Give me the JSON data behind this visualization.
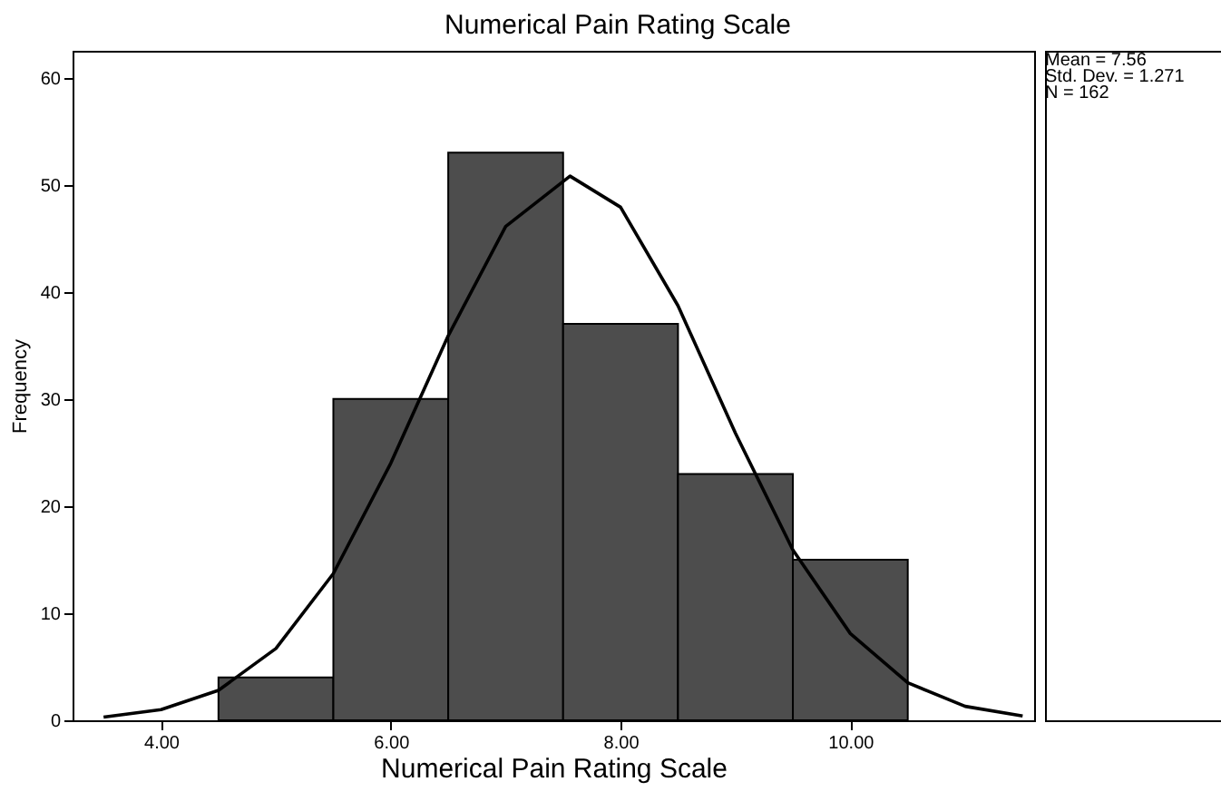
{
  "chart_data": {
    "type": "histogram",
    "title": "Numerical Pain Rating Scale",
    "xlabel": "Numerical Pain Rating Scale",
    "ylabel": "Frequency",
    "bins": [
      4.5,
      5.5,
      6.5,
      7.5,
      8.5,
      9.5,
      10.5
    ],
    "values": [
      4,
      30,
      53,
      37,
      23,
      15
    ],
    "color": "#4d4d4d",
    "series": [
      {
        "type": "line",
        "color": "#000000",
        "x": [
          3.5,
          4,
          4.5,
          5,
          5.5,
          6,
          6.5,
          7,
          7.56,
          8,
          8.5,
          9,
          9.5,
          10,
          10.5,
          11,
          11.5
        ],
        "values": [
          0.3,
          1.0,
          2.8,
          6.7,
          13.7,
          24.0,
          35.9,
          46.1,
          50.8,
          47.9,
          38.7,
          26.8,
          15.9,
          8.1,
          3.5,
          1.3,
          0.4
        ]
      }
    ],
    "xlim": [
      3.23,
      11.6
    ],
    "xticks": [
      {
        "value": 4,
        "label": "4.00"
      },
      {
        "value": 6,
        "label": "6.00"
      },
      {
        "value": 8,
        "label": "8.00"
      },
      {
        "value": 10,
        "label": "10.00"
      }
    ],
    "ylim": [
      0,
      62.5
    ],
    "yticks": [
      0,
      10,
      20,
      30,
      40,
      50,
      60
    ],
    "grid": false,
    "annotations": [
      "Mean = 7.56",
      "Std. Dev. = 1.271",
      "N = 162"
    ]
  }
}
